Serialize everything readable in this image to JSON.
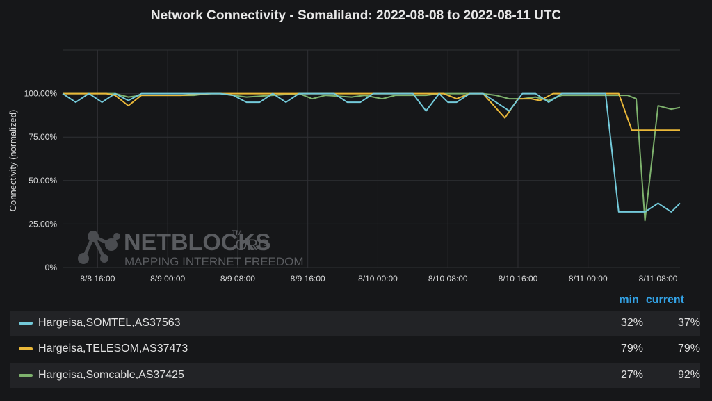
{
  "chart_data": {
    "type": "line",
    "title": "Network Connectivity - Somaliland: 2022-08-08 to 2022-08-11 UTC",
    "ylabel": "Connectivity (normalized)",
    "ylim": [
      0,
      125
    ],
    "y_ticks": [
      "0%",
      "25.00%",
      "50.00%",
      "75.00%",
      "100.00%"
    ],
    "x_range": [
      "2022-08-08T12:00",
      "2022-08-11T10:30"
    ],
    "x_ticks": [
      {
        "t": "2022-08-08T16:00",
        "label": "8/8 16:00"
      },
      {
        "t": "2022-08-09T00:00",
        "label": "8/9 00:00"
      },
      {
        "t": "2022-08-09T08:00",
        "label": "8/9 08:00"
      },
      {
        "t": "2022-08-09T16:00",
        "label": "8/9 16:00"
      },
      {
        "t": "2022-08-10T00:00",
        "label": "8/10 00:00"
      },
      {
        "t": "2022-08-10T08:00",
        "label": "8/10 08:00"
      },
      {
        "t": "2022-08-10T16:00",
        "label": "8/10 16:00"
      },
      {
        "t": "2022-08-11T00:00",
        "label": "8/11 00:00"
      },
      {
        "t": "2022-08-11T08:00",
        "label": "8/11 08:00"
      }
    ],
    "grid": true,
    "legend": "bottom",
    "legend_columns": [
      "min",
      "current"
    ],
    "series": [
      {
        "name": "Hargeisa,SOMTEL,AS37563",
        "color": "#73c9d9",
        "min": "32%",
        "current": "37%",
        "points": [
          [
            "2022-08-08T12:00",
            100
          ],
          [
            "2022-08-08T13:30",
            95
          ],
          [
            "2022-08-08T15:00",
            100
          ],
          [
            "2022-08-08T16:30",
            95
          ],
          [
            "2022-08-08T18:00",
            100
          ],
          [
            "2022-08-08T19:30",
            96
          ],
          [
            "2022-08-08T21:00",
            100
          ],
          [
            "2022-08-09T00:00",
            100
          ],
          [
            "2022-08-09T06:00",
            100
          ],
          [
            "2022-08-09T07:30",
            99
          ],
          [
            "2022-08-09T09:00",
            95
          ],
          [
            "2022-08-09T10:30",
            95
          ],
          [
            "2022-08-09T12:00",
            100
          ],
          [
            "2022-08-09T13:30",
            95
          ],
          [
            "2022-08-09T15:00",
            100
          ],
          [
            "2022-08-09T19:00",
            100
          ],
          [
            "2022-08-09T20:30",
            95
          ],
          [
            "2022-08-09T22:00",
            95
          ],
          [
            "2022-08-09T23:30",
            100
          ],
          [
            "2022-08-10T04:00",
            100
          ],
          [
            "2022-08-10T05:30",
            90
          ],
          [
            "2022-08-10T07:00",
            100
          ],
          [
            "2022-08-10T08:00",
            95
          ],
          [
            "2022-08-10T09:00",
            95
          ],
          [
            "2022-08-10T10:30",
            100
          ],
          [
            "2022-08-10T12:00",
            100
          ],
          [
            "2022-08-10T15:00",
            90
          ],
          [
            "2022-08-10T16:30",
            100
          ],
          [
            "2022-08-10T18:00",
            100
          ],
          [
            "2022-08-10T19:30",
            95
          ],
          [
            "2022-08-10T21:00",
            100
          ],
          [
            "2022-08-11T02:00",
            100
          ],
          [
            "2022-08-11T03:30",
            32
          ],
          [
            "2022-08-11T06:30",
            32
          ],
          [
            "2022-08-11T08:00",
            37
          ],
          [
            "2022-08-11T09:30",
            32
          ],
          [
            "2022-08-11T10:30",
            37
          ]
        ]
      },
      {
        "name": "Hargeisa,TELESOM,AS37473",
        "color": "#eab839",
        "min": "79%",
        "current": "79%",
        "points": [
          [
            "2022-08-08T12:00",
            100
          ],
          [
            "2022-08-08T17:00",
            100
          ],
          [
            "2022-08-08T18:00",
            99
          ],
          [
            "2022-08-08T19:30",
            93
          ],
          [
            "2022-08-08T21:00",
            99
          ],
          [
            "2022-08-09T01:30",
            99
          ],
          [
            "2022-08-09T05:00",
            100
          ],
          [
            "2022-08-09T09:00",
            100
          ],
          [
            "2022-08-09T20:00",
            100
          ],
          [
            "2022-08-10T06:00",
            100
          ],
          [
            "2022-08-10T07:30",
            100
          ],
          [
            "2022-08-10T09:00",
            97
          ],
          [
            "2022-08-10T10:30",
            100
          ],
          [
            "2022-08-10T12:00",
            100
          ],
          [
            "2022-08-10T14:30",
            86
          ],
          [
            "2022-08-10T16:00",
            97
          ],
          [
            "2022-08-10T17:30",
            97
          ],
          [
            "2022-08-10T18:30",
            96
          ],
          [
            "2022-08-10T20:00",
            100
          ],
          [
            "2022-08-11T03:30",
            100
          ],
          [
            "2022-08-11T05:00",
            79
          ],
          [
            "2022-08-11T10:30",
            79
          ]
        ]
      },
      {
        "name": "Hargeisa,Somcable,AS37425",
        "color": "#7eb26d",
        "min": "27%",
        "current": "92%",
        "points": [
          [
            "2022-08-08T12:00",
            100
          ],
          [
            "2022-08-08T18:00",
            100
          ],
          [
            "2022-08-08T19:30",
            98
          ],
          [
            "2022-08-08T21:00",
            99
          ],
          [
            "2022-08-09T03:00",
            99
          ],
          [
            "2022-08-09T04:30",
            100
          ],
          [
            "2022-08-09T06:00",
            100
          ],
          [
            "2022-08-09T09:00",
            98
          ],
          [
            "2022-08-09T15:00",
            100
          ],
          [
            "2022-08-09T16:30",
            97
          ],
          [
            "2022-08-09T18:00",
            99
          ],
          [
            "2022-08-09T21:00",
            98
          ],
          [
            "2022-08-09T22:30",
            99
          ],
          [
            "2022-08-10T00:30",
            97
          ],
          [
            "2022-08-10T02:00",
            99
          ],
          [
            "2022-08-10T05:30",
            99
          ],
          [
            "2022-08-10T07:00",
            100
          ],
          [
            "2022-08-10T12:00",
            100
          ],
          [
            "2022-08-10T13:30",
            99
          ],
          [
            "2022-08-10T15:00",
            97
          ],
          [
            "2022-08-10T16:30",
            97
          ],
          [
            "2022-08-10T18:00",
            98
          ],
          [
            "2022-08-10T19:30",
            96
          ],
          [
            "2022-08-10T21:00",
            99
          ],
          [
            "2022-08-11T03:00",
            99
          ],
          [
            "2022-08-11T04:30",
            99
          ],
          [
            "2022-08-11T05:30",
            97
          ],
          [
            "2022-08-11T06:30",
            27
          ],
          [
            "2022-08-11T08:00",
            93
          ],
          [
            "2022-08-11T09:30",
            91
          ],
          [
            "2022-08-11T10:30",
            92
          ]
        ]
      }
    ]
  },
  "watermark": {
    "brand": "NETBLOCKS",
    "tm": "™",
    "org": ".ORG",
    "tagline": "MAPPING INTERNET FREEDOM",
    "icon": "network-nodes-icon"
  }
}
